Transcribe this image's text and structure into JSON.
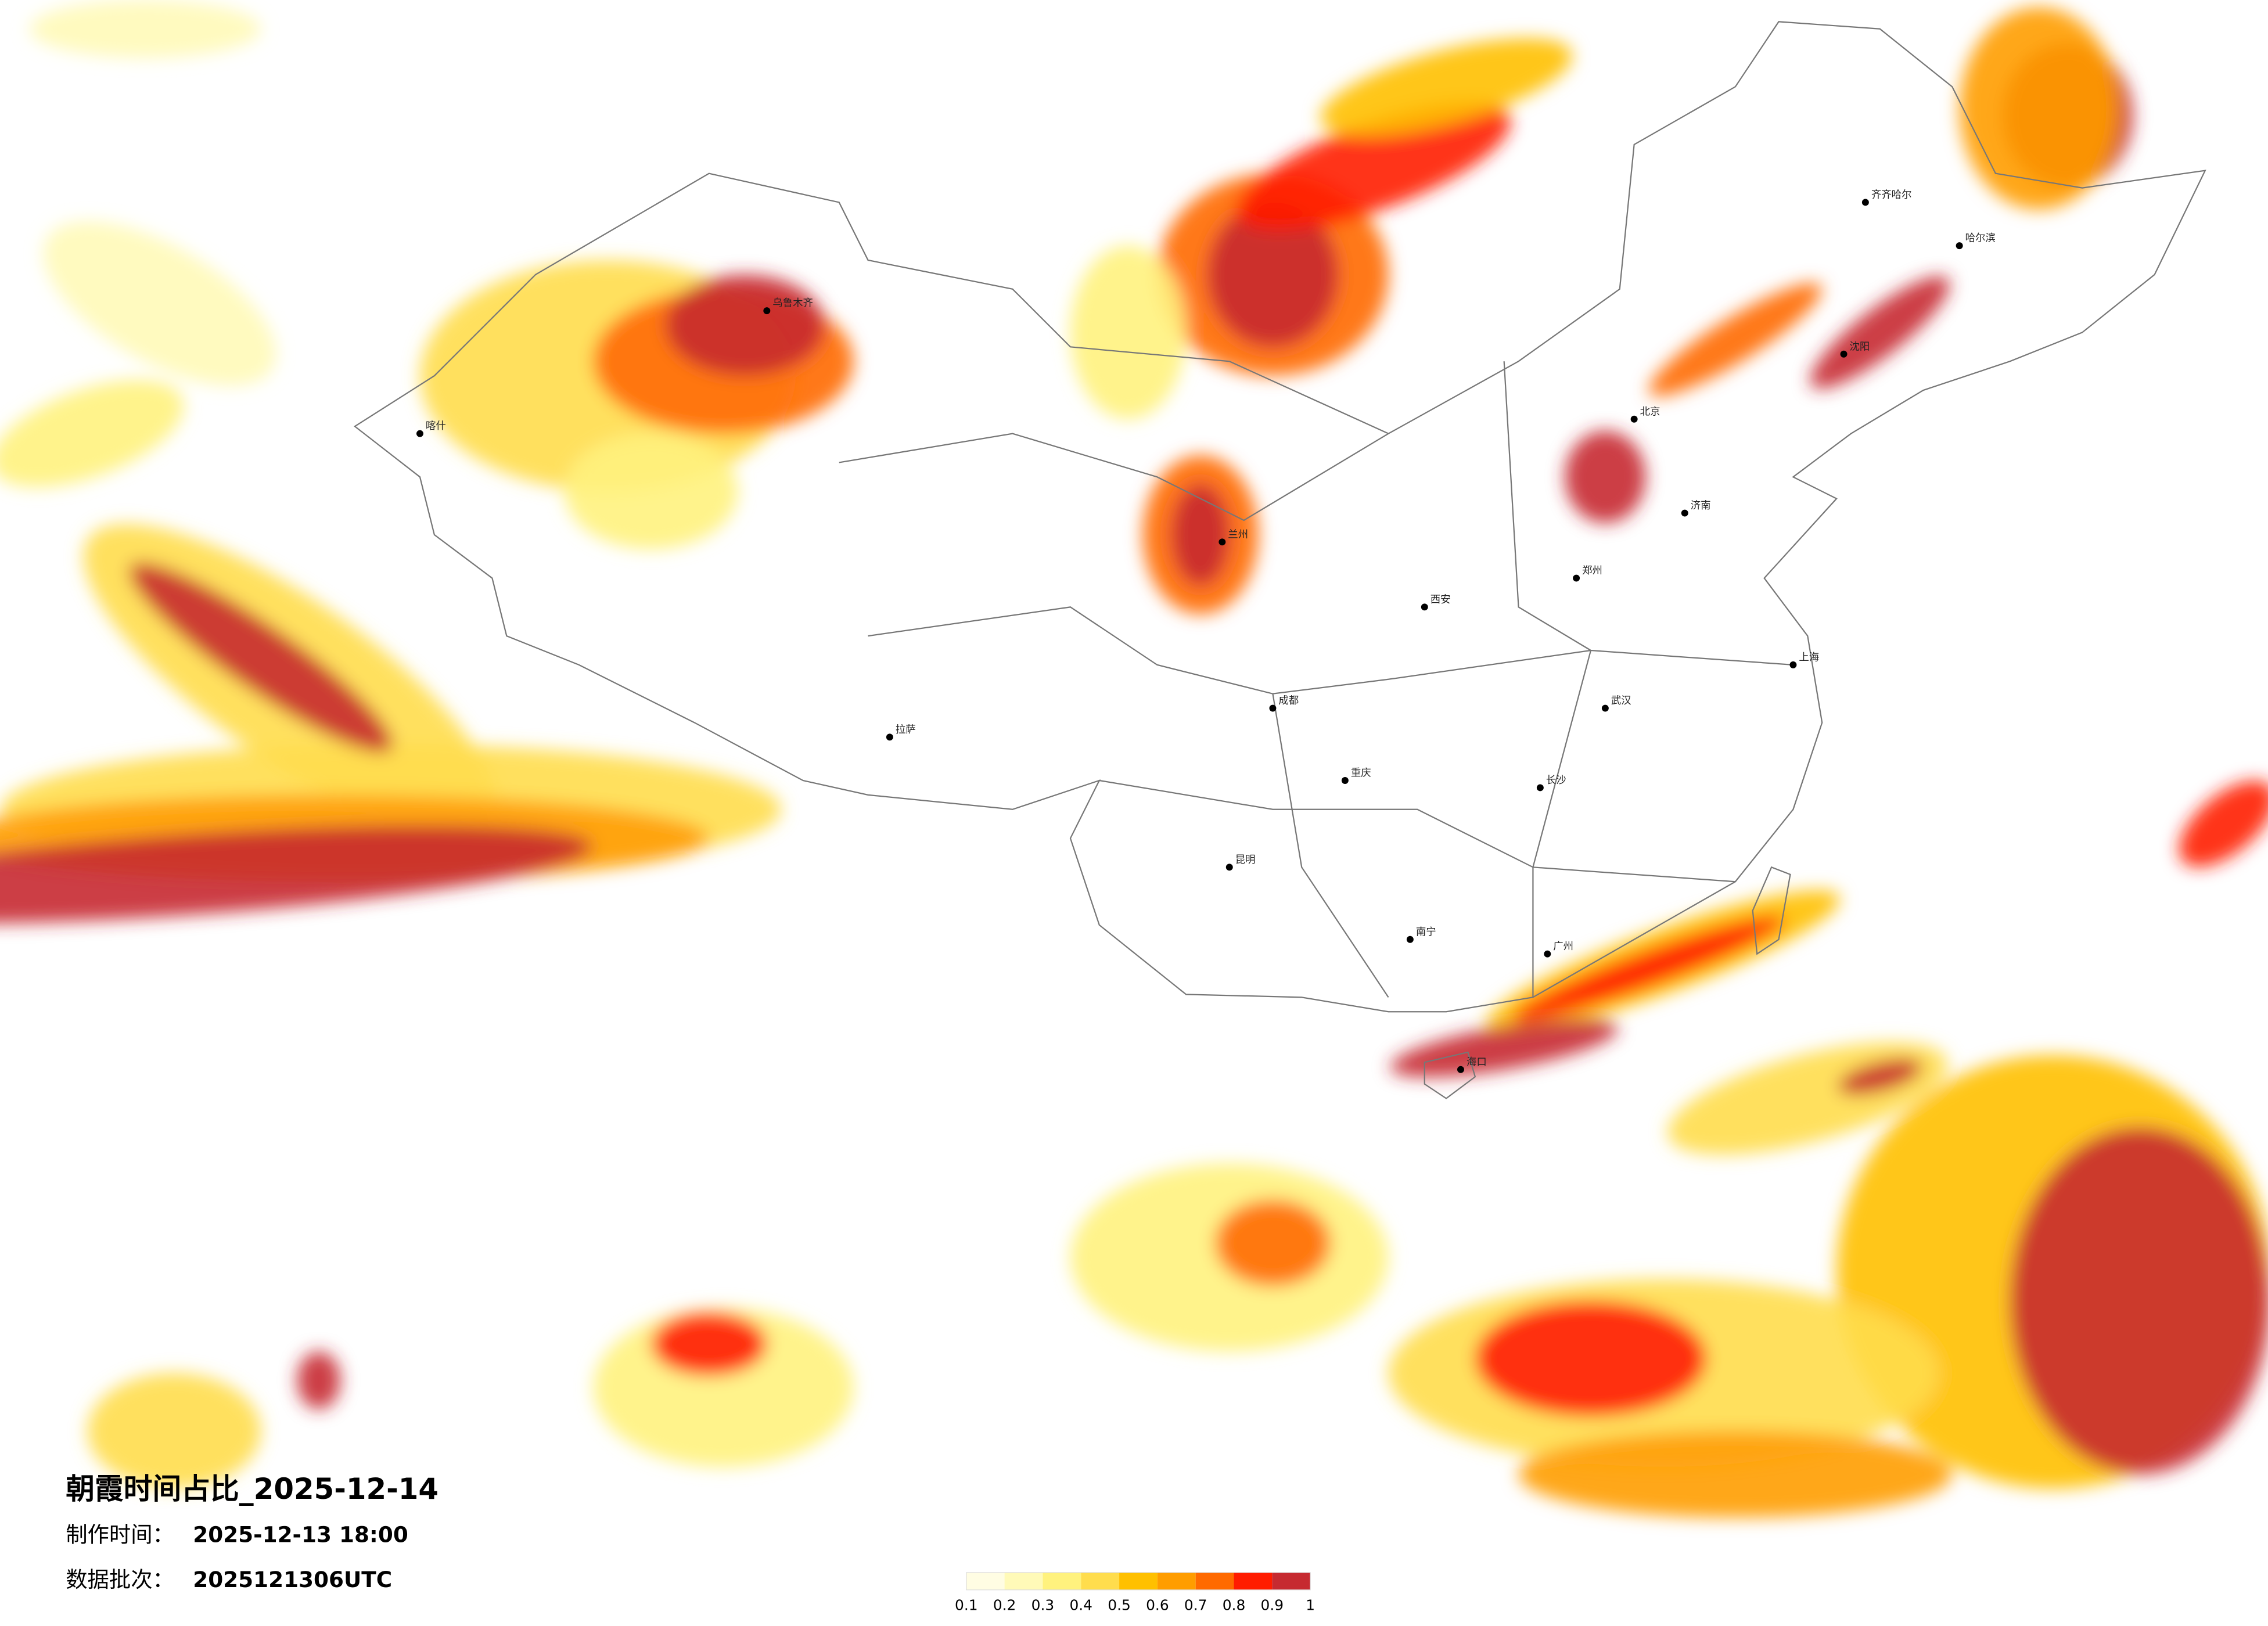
{
  "header": {
    "title": "朝霞时间占比_2025-12-14",
    "made_label": "制作时间：",
    "made_value": "2025-12-13 18:00",
    "batch_label": "数据批次：",
    "batch_value": "2025121306UTC"
  },
  "legend": {
    "ticks": [
      0.1,
      0.2,
      0.3,
      0.4,
      0.5,
      0.6,
      0.7,
      0.8,
      0.9,
      1
    ],
    "colors": [
      "#fffde3",
      "#fffab8",
      "#fff27e",
      "#ffdd4d",
      "#ffc000",
      "#ff9d00",
      "#ff6a00",
      "#ff1c00",
      "#c62a30"
    ]
  },
  "cities": [
    "乌鲁木齐",
    "拉萨",
    "成都",
    "重庆",
    "武汉",
    "上海",
    "广州",
    "哈尔滨",
    "西安",
    "兰州",
    "昆明",
    "南宁",
    "郑州",
    "济南",
    "长沙",
    "海口",
    "沈阳",
    "北京",
    "齐齐哈尔",
    "喀什"
  ]
}
